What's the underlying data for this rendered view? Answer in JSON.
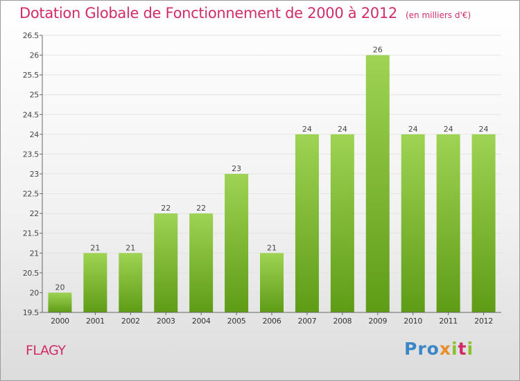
{
  "header": {
    "title": "Dotation Globale de Fonctionnement de 2000 à 2012",
    "unit_note": "(en milliers d'€)"
  },
  "footer": {
    "commune": "FLAGY",
    "logo_text": "Proxiti"
  },
  "colors": {
    "title": "#d12b68",
    "bar_top": "#9fd353",
    "bar_bottom": "#5e9c16",
    "grid": "#e4e4e4",
    "axis": "#666666"
  },
  "chart_data": {
    "type": "bar",
    "categories": [
      "2000",
      "2001",
      "2002",
      "2003",
      "2004",
      "2005",
      "2006",
      "2007",
      "2008",
      "2009",
      "2010",
      "2011",
      "2012"
    ],
    "values": [
      20,
      21,
      21,
      22,
      22,
      23,
      21,
      24,
      24,
      26,
      24,
      24,
      24
    ],
    "data_labels": [
      "20",
      "21",
      "21",
      "22",
      "22",
      "23",
      "21",
      "24",
      "24",
      "26",
      "24",
      "24",
      "24"
    ],
    "yticks": [
      "19.5",
      "20",
      "20.5",
      "21",
      "21.5",
      "22",
      "22.5",
      "23",
      "23.5",
      "24",
      "24.5",
      "25",
      "25.5",
      "26",
      "26.5"
    ],
    "ylim": [
      19.5,
      26.5
    ],
    "grid": true,
    "legend": "none"
  }
}
